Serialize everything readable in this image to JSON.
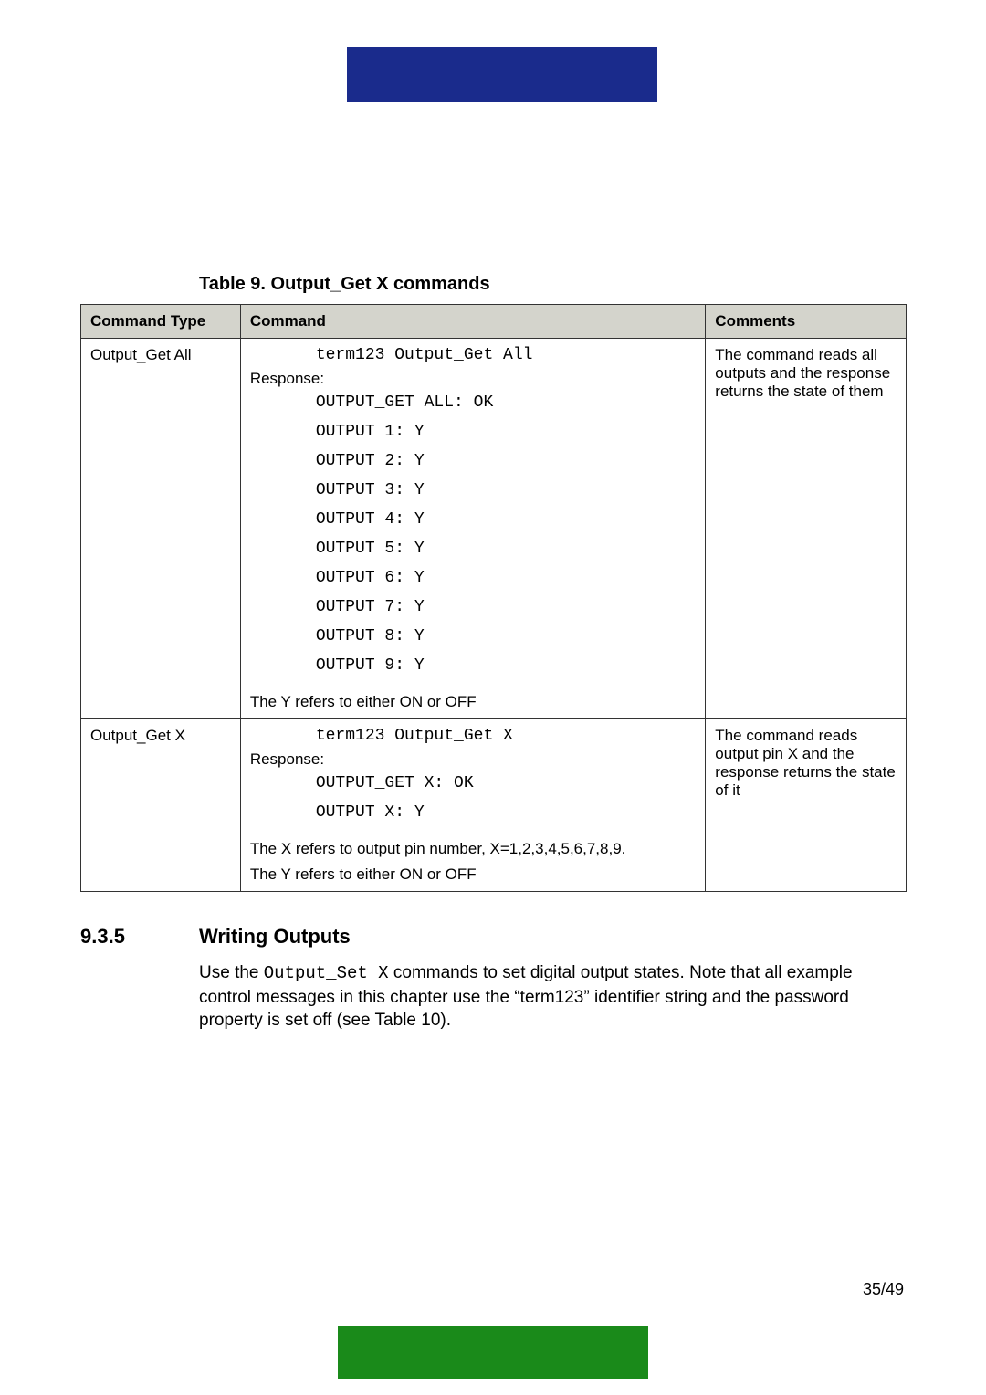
{
  "colors": {
    "top_bar": "#1a2b8c",
    "bottom_bar": "#1a8a1a",
    "table_header_bg": "#d4d4cc",
    "border": "#333333",
    "text": "#000000",
    "page_bg": "#ffffff"
  },
  "table": {
    "caption": "Table 9. Output_Get X commands",
    "headers": [
      "Command Type",
      "Command",
      "Comments"
    ],
    "rows": [
      {
        "type": "Output_Get All",
        "cmd_line": "term123 Output_Get All",
        "response_label": "Response:",
        "response_lines": [
          "OUTPUT_GET ALL: OK",
          "OUTPUT 1: Y",
          "OUTPUT 2: Y",
          "OUTPUT 3: Y",
          "OUTPUT 4: Y",
          "OUTPUT 5: Y",
          "OUTPUT 6: Y",
          "OUTPUT 7: Y",
          "OUTPUT 8: Y",
          "OUTPUT 9: Y"
        ],
        "notes": [
          "The Y refers to either ON or OFF"
        ],
        "comment": "The command reads all outputs and the response returns the state of them"
      },
      {
        "type": "Output_Get X",
        "cmd_line": "term123 Output_Get X",
        "response_label": "Response:",
        "response_lines": [
          "OUTPUT_GET X: OK",
          "OUTPUT X: Y"
        ],
        "notes": [
          "The X refers to output pin number, X=1,2,3,4,5,6,7,8,9.",
          "The Y refers to either ON or OFF"
        ],
        "comment": "The command reads output pin X and the response returns the state of it"
      }
    ]
  },
  "section": {
    "number": "9.3.5",
    "title": "Writing Outputs",
    "body_parts": [
      "Use the ",
      "Output_Set X",
      " commands to set digital output states. Note that all example control messages in this chapter use the “term123” identifier string and the password property is set off (see Table 10)."
    ]
  },
  "page_number": "35/49"
}
